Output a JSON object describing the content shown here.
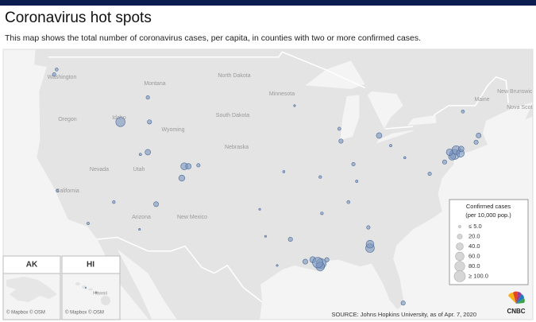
{
  "header": {
    "title": "Coronavirus hot spots",
    "subtitle": "This map shows the total number of coronavirus cases, per capita, in counties with two or more confirmed cases."
  },
  "map": {
    "region_labels": [
      "Washington",
      "Montana",
      "North Dakota",
      "Oregon",
      "Idaho",
      "South Dakota",
      "Wyoming",
      "Nebraska",
      "Nevada",
      "Utah",
      "California",
      "Arizona",
      "New Mexico",
      "Minnesota",
      "Maine",
      "New Brunswick",
      "Nova Scotia"
    ],
    "bubble_color": "#7b96bf",
    "bubbles": [
      {
        "lon": -74.0,
        "lat": 40.7,
        "value": 80
      },
      {
        "lon": -73.8,
        "lat": 41.1,
        "value": 60
      },
      {
        "lon": -73.3,
        "lat": 40.8,
        "value": 50
      },
      {
        "lon": -74.3,
        "lat": 40.5,
        "value": 40
      },
      {
        "lon": -74.6,
        "lat": 40.9,
        "value": 35
      },
      {
        "lon": -71.1,
        "lat": 42.4,
        "value": 20
      },
      {
        "lon": -71.4,
        "lat": 41.8,
        "value": 15
      },
      {
        "lon": -73.2,
        "lat": 41.2,
        "value": 25
      },
      {
        "lon": -75.2,
        "lat": 40.0,
        "value": 15
      },
      {
        "lon": -83.1,
        "lat": 42.4,
        "value": 25
      },
      {
        "lon": -87.7,
        "lat": 41.9,
        "value": 15
      },
      {
        "lon": -90.1,
        "lat": 30.0,
        "value": 80
      },
      {
        "lon": -90.2,
        "lat": 29.7,
        "value": 60
      },
      {
        "lon": -91.1,
        "lat": 30.4,
        "value": 30
      },
      {
        "lon": -84.2,
        "lat": 31.6,
        "value": 60
      },
      {
        "lon": -84.4,
        "lat": 33.7,
        "value": 10
      },
      {
        "lon": -80.2,
        "lat": 25.8,
        "value": 15
      },
      {
        "lon": -104.9,
        "lat": 39.7,
        "value": 10
      },
      {
        "lon": -106.6,
        "lat": 39.6,
        "value": 40
      },
      {
        "lon": -106.1,
        "lat": 39.6,
        "value": 25
      },
      {
        "lon": -106.9,
        "lat": 38.5,
        "value": 30
      },
      {
        "lon": -114.3,
        "lat": 43.6,
        "value": 70
      },
      {
        "lon": -122.3,
        "lat": 47.6,
        "value": 10
      },
      {
        "lon": -122.0,
        "lat": 48.0,
        "value": 8
      },
      {
        "lon": -118.2,
        "lat": 34.1,
        "value": 5
      },
      {
        "lon": -121.9,
        "lat": 37.3,
        "value": 5
      },
      {
        "lon": -111.0,
        "lat": 40.9,
        "value": 25
      },
      {
        "lon": -111.9,
        "lat": 40.7,
        "value": 5
      },
      {
        "lon": -110.0,
        "lat": 36.0,
        "value": 20
      },
      {
        "lon": -115.1,
        "lat": 36.2,
        "value": 6
      },
      {
        "lon": -112.0,
        "lat": 33.5,
        "value": 3
      },
      {
        "lon": -86.2,
        "lat": 39.8,
        "value": 10
      },
      {
        "lon": -85.8,
        "lat": 38.2,
        "value": 5
      },
      {
        "lon": -86.8,
        "lat": 36.2,
        "value": 8
      },
      {
        "lon": -90.0,
        "lat": 35.1,
        "value": 6
      },
      {
        "lon": -77.0,
        "lat": 38.9,
        "value": 10
      },
      {
        "lon": -73.0,
        "lat": 44.5,
        "value": 8
      },
      {
        "lon": -95.4,
        "lat": 29.8,
        "value": 3
      },
      {
        "lon": -96.8,
        "lat": 32.8,
        "value": 3
      },
      {
        "lon": -97.5,
        "lat": 35.5,
        "value": 3
      },
      {
        "lon": -111.0,
        "lat": 45.7,
        "value": 10
      },
      {
        "lon": -89.4,
        "lat": 30.4,
        "value": 15
      },
      {
        "lon": -92.0,
        "lat": 30.2,
        "value": 20
      },
      {
        "lon": -93.8,
        "lat": 32.5,
        "value": 15
      },
      {
        "lon": -90.5,
        "lat": 30.1,
        "value": 90
      },
      {
        "lon": -81.7,
        "lat": 41.5,
        "value": 5
      },
      {
        "lon": -80.0,
        "lat": 40.4,
        "value": 4
      },
      {
        "lon": -87.9,
        "lat": 43.0,
        "value": 8
      },
      {
        "lon": -93.3,
        "lat": 45.0,
        "value": 3
      },
      {
        "lon": -94.6,
        "lat": 39.1,
        "value": 4
      },
      {
        "lon": -90.2,
        "lat": 38.6,
        "value": 6
      },
      {
        "lon": -84.2,
        "lat": 32.0,
        "value": 50
      },
      {
        "lon": -110.8,
        "lat": 43.6,
        "value": 15
      }
    ]
  },
  "legend": {
    "title": "Confirmed cases",
    "subtitle": "(per 10,000 pop.)",
    "items": [
      {
        "value": 5,
        "label": "≤ 5.0"
      },
      {
        "value": 20,
        "label": "20.0"
      },
      {
        "value": 40,
        "label": "40.0"
      },
      {
        "value": 60,
        "label": "60.0"
      },
      {
        "value": 80,
        "label": "80.0"
      },
      {
        "value": 100,
        "label": "≥ 100.0"
      }
    ]
  },
  "insets": [
    {
      "label": "AK",
      "credit": "© Mapbox © OSM"
    },
    {
      "label": "HI",
      "place": "Hawaii",
      "credit": "© Mapbox © OSM"
    }
  ],
  "source": "SOURCE: Johns Hopkins University, as of Apr. 7, 2020",
  "logo": "CNBC"
}
